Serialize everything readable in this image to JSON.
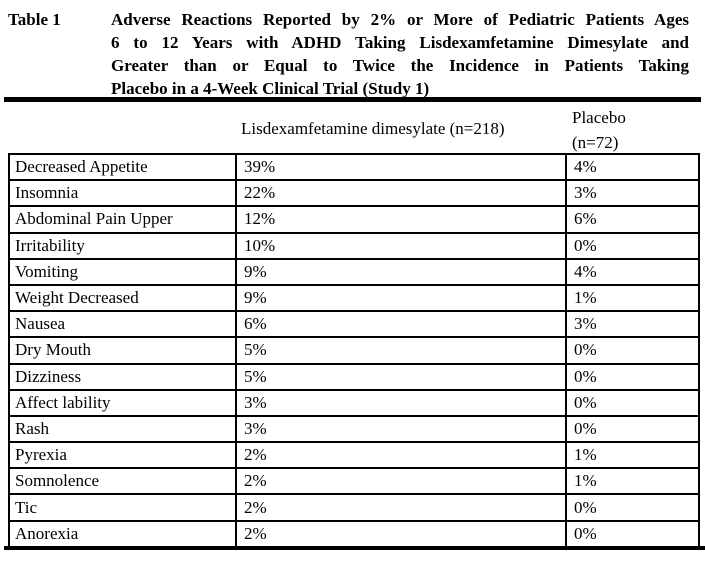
{
  "title": {
    "label": "Table 1",
    "lines": [
      "Adverse Reactions Reported by 2% or More of Pediatric Patients Ages",
      "6 to 12 Years with ADHD Taking Lisdexamfetamine Dimesylate and",
      "Greater than or Equal to Twice the Incidence in Patients Taking",
      "Placebo in a 4-Week Clinical Trial (Study 1)"
    ]
  },
  "column_headers": {
    "reaction": "",
    "drug": "Lisdexamfetamine dimesylate (n=218)",
    "placebo_line1": "Placebo",
    "placebo_line2": "(n=72)"
  },
  "rows": [
    {
      "reaction": "Decreased Appetite",
      "drug": "39%",
      "placebo": "4%"
    },
    {
      "reaction": "Insomnia",
      "drug": "22%",
      "placebo": "3%"
    },
    {
      "reaction": "Abdominal Pain Upper",
      "drug": "12%",
      "placebo": "6%"
    },
    {
      "reaction": "Irritability",
      "drug": "10%",
      "placebo": "0%"
    },
    {
      "reaction": "Vomiting",
      "drug": "9%",
      "placebo": "4%"
    },
    {
      "reaction": "Weight Decreased",
      "drug": "9%",
      "placebo": "1%"
    },
    {
      "reaction": "Nausea",
      "drug": "6%",
      "placebo": "3%"
    },
    {
      "reaction": "Dry Mouth",
      "drug": "5%",
      "placebo": "0%"
    },
    {
      "reaction": "Dizziness",
      "drug": "5%",
      "placebo": "0%"
    },
    {
      "reaction": "Affect lability",
      "drug": "3%",
      "placebo": "0%"
    },
    {
      "reaction": "Rash",
      "drug": "3%",
      "placebo": "0%"
    },
    {
      "reaction": "Pyrexia",
      "drug": "2%",
      "placebo": "1%"
    },
    {
      "reaction": "Somnolence",
      "drug": "2%",
      "placebo": "1%"
    },
    {
      "reaction": "Tic",
      "drug": "2%",
      "placebo": "0%"
    },
    {
      "reaction": "Anorexia",
      "drug": "2%",
      "placebo": "0%"
    }
  ],
  "colors": {
    "text": "#000000",
    "background": "#ffffff",
    "border": "#000000"
  }
}
